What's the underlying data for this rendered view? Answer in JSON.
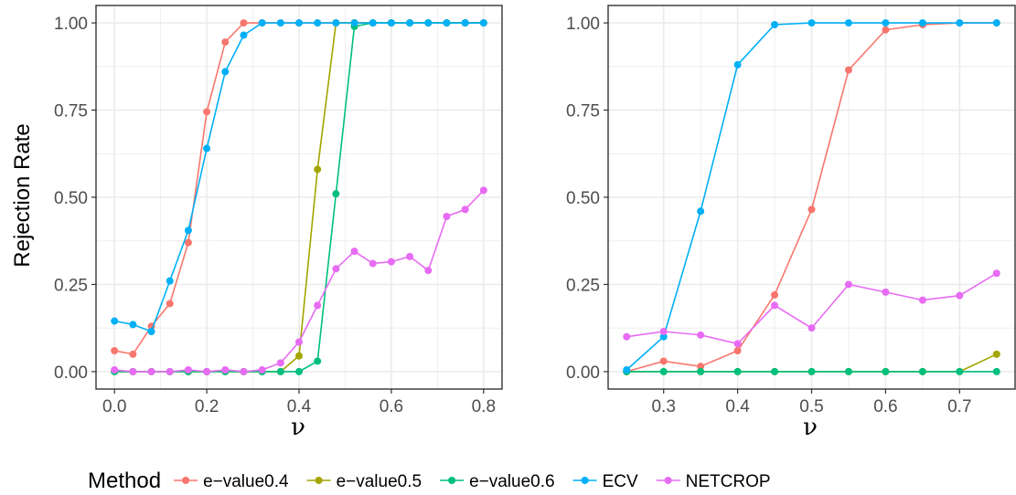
{
  "colors": {
    "e-value0.4": "#F8766D",
    "e-value0.5": "#A3A500",
    "e-value0.6": "#00BF7D",
    "ECV": "#00B0F6",
    "NETCROP": "#E76BF3"
  },
  "legend": {
    "title": "Method",
    "entries": [
      "e−value0.4",
      "e−value0.5",
      "e−value0.6",
      "ECV",
      "NETCROP"
    ],
    "keys": [
      "e-value0.4",
      "e-value0.5",
      "e-value0.6",
      "ECV",
      "NETCROP"
    ],
    "position": "bottom"
  },
  "chart_data": [
    {
      "type": "line",
      "title": "",
      "xlabel": "ν",
      "ylabel": "Rejection Rate",
      "xlim": [
        -0.04,
        0.84
      ],
      "ylim": [
        -0.05,
        1.05
      ],
      "xticks": [
        0.0,
        0.2,
        0.4,
        0.6,
        0.8
      ],
      "xtick_labels": [
        "0.0",
        "0.2",
        "0.4",
        "0.6",
        "0.8"
      ],
      "yticks": [
        0.0,
        0.25,
        0.5,
        0.75,
        1.0
      ],
      "ytick_labels": [
        "0.00",
        "0.25",
        "0.50",
        "0.75",
        "1.00"
      ],
      "grid": true,
      "x": [
        0.0,
        0.04,
        0.08,
        0.12,
        0.16,
        0.2,
        0.24,
        0.28,
        0.32,
        0.36,
        0.4,
        0.44,
        0.48,
        0.52,
        0.56,
        0.6,
        0.64,
        0.68,
        0.72,
        0.76,
        0.8
      ],
      "series": [
        {
          "key": "e-value0.4",
          "values": [
            0.06,
            0.05,
            0.13,
            0.195,
            0.37,
            0.745,
            0.945,
            1.0,
            1.0,
            1.0,
            1.0,
            1.0,
            1.0,
            1.0,
            1.0,
            1.0,
            1.0,
            1.0,
            1.0,
            1.0,
            1.0
          ]
        },
        {
          "key": "e-value0.5",
          "values": [
            0.0,
            0.0,
            0.0,
            0.0,
            0.0,
            0.0,
            0.0,
            0.0,
            0.0,
            0.0,
            0.045,
            0.58,
            1.0,
            1.0,
            1.0,
            1.0,
            1.0,
            1.0,
            1.0,
            1.0,
            1.0
          ]
        },
        {
          "key": "e-value0.6",
          "values": [
            0.0,
            0.0,
            0.0,
            0.0,
            0.0,
            0.0,
            0.0,
            0.0,
            0.0,
            0.0,
            0.0,
            0.03,
            0.51,
            0.99,
            1.0,
            1.0,
            1.0,
            1.0,
            1.0,
            1.0,
            1.0
          ]
        },
        {
          "key": "ECV",
          "values": [
            0.145,
            0.135,
            0.115,
            0.26,
            0.405,
            0.64,
            0.86,
            0.965,
            1.0,
            1.0,
            1.0,
            1.0,
            1.0,
            1.0,
            1.0,
            1.0,
            1.0,
            1.0,
            1.0,
            1.0,
            1.0
          ]
        },
        {
          "key": "NETCROP",
          "values": [
            0.005,
            0.0,
            0.0,
            0.0,
            0.005,
            0.0,
            0.005,
            0.0,
            0.005,
            0.025,
            0.085,
            0.19,
            0.295,
            0.345,
            0.31,
            0.315,
            0.33,
            0.29,
            0.445,
            0.465,
            0.52
          ]
        }
      ]
    },
    {
      "type": "line",
      "title": "",
      "xlabel": "ν",
      "ylabel": "",
      "xlim": [
        0.225,
        0.775
      ],
      "ylim": [
        -0.05,
        1.05
      ],
      "xticks": [
        0.3,
        0.4,
        0.5,
        0.6,
        0.7
      ],
      "xtick_labels": [
        "0.3",
        "0.4",
        "0.5",
        "0.6",
        "0.7"
      ],
      "yticks": [
        0.0,
        0.25,
        0.5,
        0.75,
        1.0
      ],
      "ytick_labels": [
        "0.00",
        "0.25",
        "0.50",
        "0.75",
        "1.00"
      ],
      "grid": true,
      "x": [
        0.25,
        0.3,
        0.35,
        0.4,
        0.45,
        0.5,
        0.55,
        0.6,
        0.65,
        0.7,
        0.75
      ],
      "series": [
        {
          "key": "e-value0.4",
          "values": [
            0.0,
            0.03,
            0.015,
            0.06,
            0.22,
            0.465,
            0.865,
            0.98,
            0.995,
            1.0,
            1.0
          ]
        },
        {
          "key": "e-value0.5",
          "values": [
            0.0,
            0.0,
            0.0,
            0.0,
            0.0,
            0.0,
            0.0,
            0.0,
            0.0,
            0.0,
            0.05
          ]
        },
        {
          "key": "e-value0.6",
          "values": [
            0.0,
            0.0,
            0.0,
            0.0,
            0.0,
            0.0,
            0.0,
            0.0,
            0.0,
            0.0,
            0.0
          ]
        },
        {
          "key": "ECV",
          "values": [
            0.005,
            0.1,
            0.46,
            0.88,
            0.995,
            1.0,
            1.0,
            1.0,
            1.0,
            1.0,
            1.0
          ]
        },
        {
          "key": "NETCROP",
          "values": [
            0.1,
            0.115,
            0.105,
            0.08,
            0.19,
            0.125,
            0.25,
            0.228,
            0.205,
            0.218,
            0.282
          ]
        }
      ]
    }
  ]
}
